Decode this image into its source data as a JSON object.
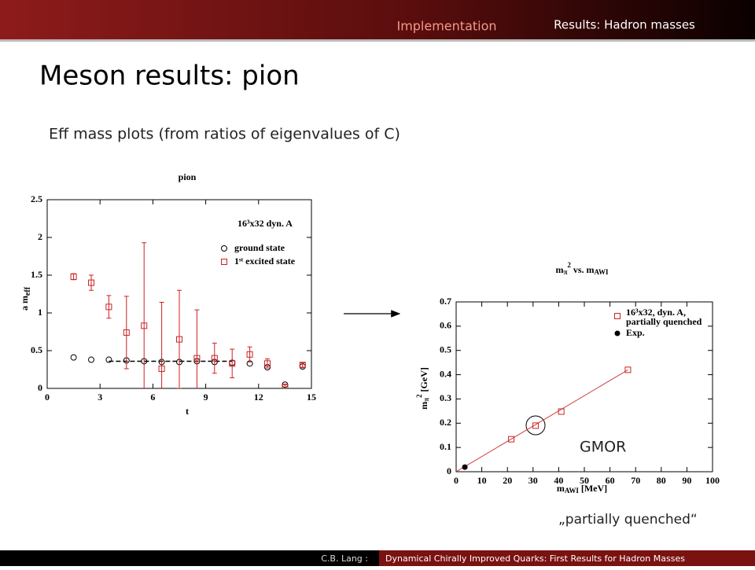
{
  "header": {
    "tabs": [
      "Implementation",
      "Results: Hadron masses"
    ]
  },
  "title": "Meson results: pion",
  "subtitle": "Eff mass plots (from ratios of eigenvalues of C)",
  "annotation": "GMOR",
  "caption": "„partially quenched“",
  "footer": {
    "author": "C.B. Lang :",
    "talk": "Dynamical Chirally Improved Quarks: First Results for Hadron Masses"
  },
  "chart_data": [
    {
      "type": "scatter",
      "title": "pion",
      "xlabel": "t",
      "ylabel": [
        "a m",
        "eff"
      ],
      "legend_title": "16³x32 dyn. A",
      "xlim": [
        0,
        15
      ],
      "xticks": [
        0,
        3,
        6,
        9,
        12,
        15
      ],
      "ylim": [
        0,
        2.5
      ],
      "yticks": [
        0,
        0.5,
        1,
        1.5,
        2,
        2.5
      ],
      "series": [
        {
          "name": [
            "ground state"
          ],
          "marker": "circle",
          "color": "#000000",
          "x": [
            1.5,
            2.5,
            3.5,
            4.5,
            5.5,
            6.5,
            7.5,
            8.5,
            9.5,
            10.5,
            11.5,
            12.5,
            13.5,
            14.5
          ],
          "values": [
            0.41,
            0.38,
            0.38,
            0.37,
            0.36,
            0.35,
            0.35,
            0.36,
            0.35,
            0.34,
            0.33,
            0.28,
            0.05,
            0.29
          ]
        },
        {
          "name": [
            "1ˢᵗ excited state"
          ],
          "marker": "square",
          "color": "#cc2222",
          "x": [
            1.5,
            2.5,
            3.5,
            4.5,
            5.5,
            6.5,
            7.5,
            8.5,
            9.5,
            10.5,
            11.5,
            12.5,
            13.5,
            14.5
          ],
          "values": [
            1.48,
            1.4,
            1.08,
            0.74,
            0.83,
            0.26,
            0.65,
            0.4,
            0.4,
            0.33,
            0.45,
            0.33,
            0.02,
            0.31
          ],
          "errors": [
            0.04,
            0.1,
            0.15,
            0.48,
            1.1,
            0.88,
            0.65,
            0.64,
            0.2,
            0.19,
            0.1,
            0.06,
            0.03,
            0.03
          ]
        }
      ],
      "fit": {
        "x": [
          3.5,
          10.5
        ],
        "values": [
          0.36,
          0.36
        ],
        "color": "#000000",
        "dashed": true
      }
    },
    {
      "type": "scatter",
      "title": [
        "m",
        "π",
        "2",
        " vs. m",
        "AWI"
      ],
      "xlabel": [
        "m",
        "AWI",
        " [MeV]"
      ],
      "ylabel": [
        "m",
        "π",
        "2",
        " [GeV]"
      ],
      "xlim": [
        0,
        100
      ],
      "xticks": [
        0,
        10,
        20,
        30,
        40,
        50,
        60,
        70,
        80,
        90,
        100
      ],
      "ylim": [
        0,
        0.7
      ],
      "yticks": [
        0,
        0.1,
        0.2,
        0.3,
        0.4,
        0.5,
        0.6,
        0.7
      ],
      "series": [
        {
          "name": [
            "16³x32, dyn. A,",
            "partially quenched"
          ],
          "marker": "square",
          "color": "#cc2222",
          "x": [
            21.5,
            31,
            41,
            67
          ],
          "values": [
            0.134,
            0.19,
            0.248,
            0.42
          ]
        },
        {
          "name": [
            "Exp."
          ],
          "marker": "dot",
          "color": "#000000",
          "x": [
            3.4
          ],
          "values": [
            0.019
          ]
        }
      ],
      "fit": {
        "x": [
          0,
          67
        ],
        "values": [
          0,
          0.42
        ],
        "color": "#cc4444",
        "dashed": false
      }
    }
  ]
}
